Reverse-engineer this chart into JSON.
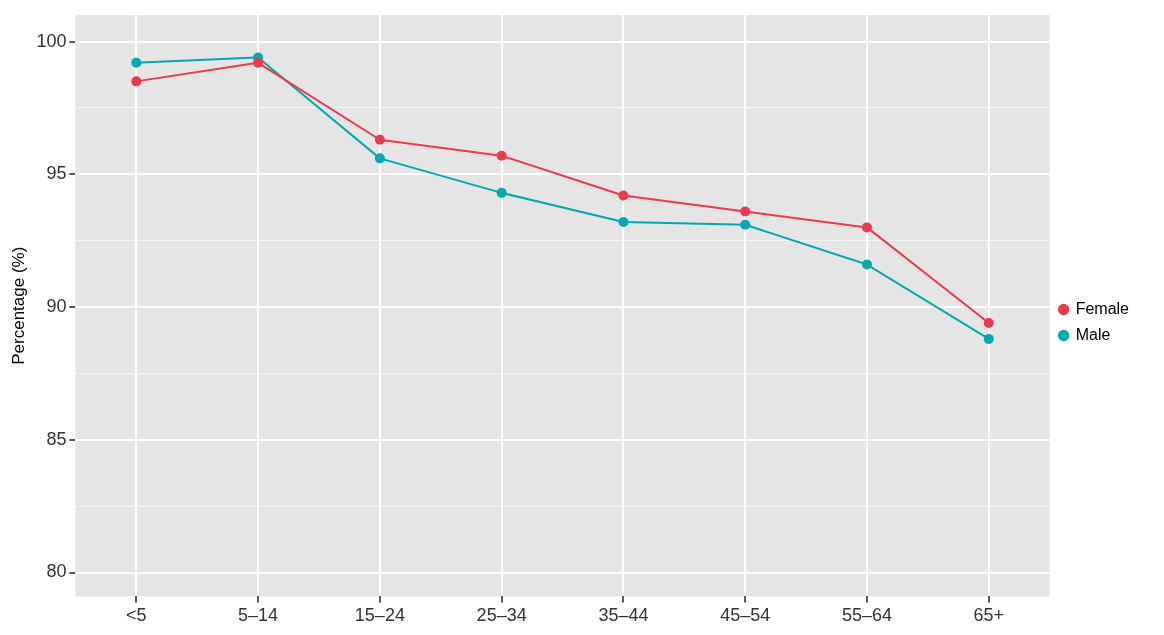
{
  "chart_data": {
    "type": "line",
    "ylabel": "Percentage (%)",
    "categories": [
      "<5",
      "5–14",
      "15–24",
      "25–34",
      "35–44",
      "45–54",
      "55–64",
      "65+"
    ],
    "series": [
      {
        "name": "Female",
        "color": "#ec3a4c",
        "values": [
          98.5,
          99.2,
          96.3,
          95.7,
          94.2,
          93.6,
          93.0,
          89.4
        ]
      },
      {
        "name": "Male",
        "color": "#00aab0",
        "values": [
          99.2,
          99.4,
          95.6,
          94.3,
          93.2,
          93.1,
          91.6,
          88.8
        ]
      }
    ],
    "ylim": [
      79.1,
      101.0
    ],
    "yticks": [
      80,
      {
        "value": 82.5,
        "label": null
      },
      85,
      {
        "value": 87.5,
        "label": null
      },
      90,
      {
        "value": 92.5,
        "label": null
      },
      95,
      {
        "value": 97.5,
        "label": null
      },
      100
    ],
    "grid": true,
    "legend": "right",
    "marker": "circle",
    "line_style": "solid"
  }
}
